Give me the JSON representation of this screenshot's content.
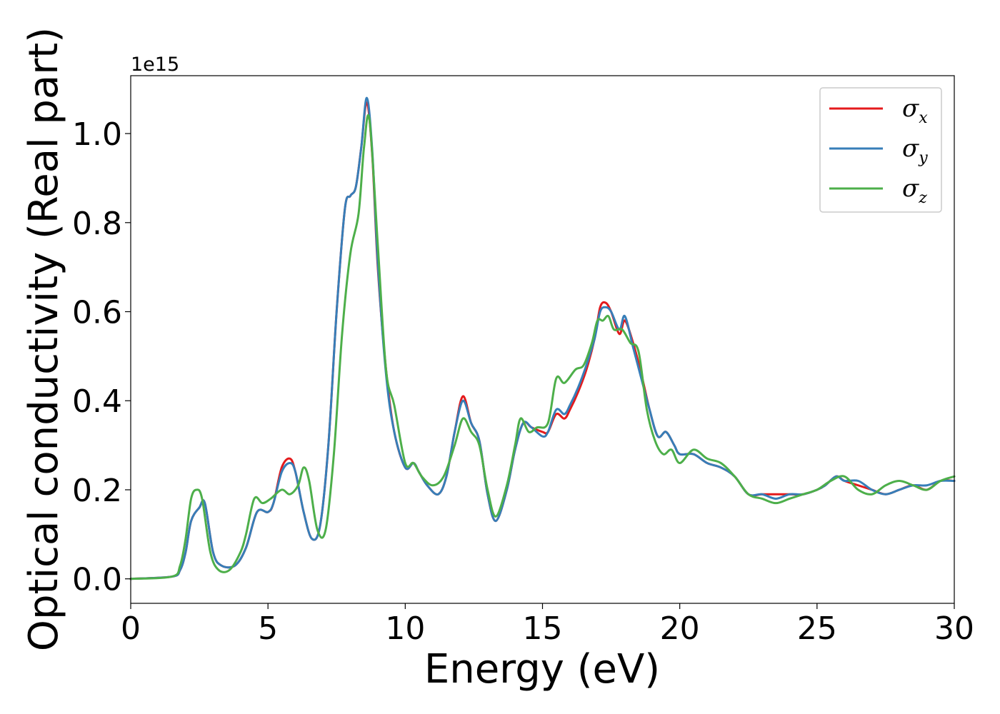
{
  "chart_data": {
    "type": "line",
    "title": "",
    "xlabel": "Energy (eV)",
    "ylabel": "Optical conductivity (Real part)",
    "y_offset_label": "1e15",
    "xlim": [
      0,
      30
    ],
    "ylim": [
      -0.055,
      1.13
    ],
    "xticks": [
      0,
      5,
      10,
      15,
      20,
      25,
      30
    ],
    "yticks": [
      0.0,
      0.2,
      0.4,
      0.6,
      0.8,
      1.0
    ],
    "xtick_labels": [
      "0",
      "5",
      "10",
      "15",
      "20",
      "25",
      "30"
    ],
    "ytick_labels": [
      "0.0",
      "0.2",
      "0.4",
      "0.6",
      "0.8",
      "1.0"
    ],
    "grid": false,
    "legend_position": "top-right",
    "series": [
      {
        "name": "σx",
        "label_base": "σ",
        "label_sub": "x",
        "color": "#e41a1c",
        "x": [
          0,
          1.5,
          1.8,
          2.0,
          2.2,
          2.5,
          2.7,
          3.0,
          3.3,
          3.8,
          4.2,
          4.6,
          5.0,
          5.2,
          5.5,
          5.8,
          6.0,
          6.3,
          6.6,
          6.9,
          7.2,
          7.5,
          7.8,
          8.0,
          8.2,
          8.4,
          8.6,
          8.8,
          9.0,
          9.3,
          9.6,
          10.0,
          10.3,
          10.5,
          10.8,
          11.2,
          11.5,
          11.8,
          12.1,
          12.4,
          12.7,
          13.0,
          13.3,
          13.7,
          14.0,
          14.3,
          14.6,
          15.0,
          15.2,
          15.5,
          15.8,
          16.0,
          16.3,
          16.6,
          16.9,
          17.1,
          17.3,
          17.5,
          17.8,
          18.0,
          18.3,
          18.6,
          18.9,
          19.2,
          19.5,
          19.8,
          20.0,
          20.5,
          21.0,
          21.5,
          22.0,
          22.5,
          23.0,
          23.5,
          24.0,
          24.5,
          25.0,
          25.3,
          25.7,
          26.0,
          26.5,
          27.0,
          27.5,
          28.0,
          28.5,
          29.0,
          29.5,
          30.0
        ],
        "y": [
          0.0,
          0.005,
          0.02,
          0.06,
          0.13,
          0.16,
          0.17,
          0.06,
          0.03,
          0.03,
          0.07,
          0.15,
          0.15,
          0.17,
          0.25,
          0.27,
          0.24,
          0.15,
          0.09,
          0.12,
          0.3,
          0.6,
          0.83,
          0.86,
          0.88,
          0.97,
          1.07,
          0.95,
          0.7,
          0.47,
          0.33,
          0.25,
          0.26,
          0.24,
          0.21,
          0.19,
          0.23,
          0.33,
          0.41,
          0.35,
          0.31,
          0.19,
          0.13,
          0.2,
          0.29,
          0.35,
          0.34,
          0.33,
          0.33,
          0.37,
          0.36,
          0.38,
          0.42,
          0.47,
          0.54,
          0.61,
          0.62,
          0.6,
          0.55,
          0.58,
          0.53,
          0.46,
          0.38,
          0.32,
          0.33,
          0.3,
          0.28,
          0.28,
          0.26,
          0.25,
          0.23,
          0.19,
          0.19,
          0.19,
          0.19,
          0.19,
          0.2,
          0.21,
          0.23,
          0.22,
          0.21,
          0.2,
          0.19,
          0.2,
          0.21,
          0.2,
          0.22,
          0.22
        ]
      },
      {
        "name": "σy",
        "label_base": "σ",
        "label_sub": "y",
        "color": "#377eb8",
        "x": [
          0,
          1.5,
          1.8,
          2.0,
          2.2,
          2.5,
          2.7,
          3.0,
          3.3,
          3.8,
          4.2,
          4.6,
          5.0,
          5.2,
          5.5,
          5.8,
          6.0,
          6.3,
          6.6,
          6.9,
          7.2,
          7.5,
          7.8,
          8.0,
          8.2,
          8.4,
          8.6,
          8.8,
          9.0,
          9.3,
          9.6,
          10.0,
          10.3,
          10.5,
          10.8,
          11.2,
          11.5,
          11.8,
          12.1,
          12.4,
          12.7,
          13.0,
          13.3,
          13.7,
          14.0,
          14.3,
          14.6,
          15.0,
          15.2,
          15.5,
          15.8,
          16.0,
          16.3,
          16.6,
          16.9,
          17.1,
          17.3,
          17.5,
          17.8,
          18.0,
          18.3,
          18.6,
          18.9,
          19.2,
          19.5,
          19.8,
          20.0,
          20.5,
          21.0,
          21.5,
          22.0,
          22.5,
          23.0,
          23.5,
          24.0,
          24.5,
          25.0,
          25.3,
          25.7,
          26.0,
          26.5,
          27.0,
          27.5,
          28.0,
          28.5,
          29.0,
          29.5,
          30.0
        ],
        "y": [
          0.0,
          0.005,
          0.02,
          0.06,
          0.13,
          0.16,
          0.17,
          0.06,
          0.03,
          0.03,
          0.07,
          0.15,
          0.15,
          0.17,
          0.24,
          0.26,
          0.24,
          0.15,
          0.09,
          0.12,
          0.3,
          0.6,
          0.83,
          0.86,
          0.88,
          0.97,
          1.08,
          0.96,
          0.71,
          0.46,
          0.33,
          0.25,
          0.26,
          0.24,
          0.21,
          0.19,
          0.23,
          0.33,
          0.4,
          0.35,
          0.31,
          0.19,
          0.13,
          0.2,
          0.29,
          0.35,
          0.34,
          0.32,
          0.33,
          0.38,
          0.37,
          0.39,
          0.43,
          0.48,
          0.54,
          0.6,
          0.61,
          0.6,
          0.56,
          0.59,
          0.52,
          0.45,
          0.38,
          0.32,
          0.33,
          0.3,
          0.28,
          0.28,
          0.26,
          0.25,
          0.23,
          0.19,
          0.19,
          0.18,
          0.19,
          0.19,
          0.2,
          0.21,
          0.23,
          0.22,
          0.22,
          0.2,
          0.19,
          0.2,
          0.21,
          0.21,
          0.22,
          0.22
        ]
      },
      {
        "name": "σz",
        "label_base": "σ",
        "label_sub": "z",
        "color": "#4daf4a",
        "x": [
          0,
          1.5,
          1.8,
          2.0,
          2.2,
          2.4,
          2.6,
          2.9,
          3.2,
          3.6,
          4.0,
          4.2,
          4.5,
          4.8,
          5.1,
          5.5,
          5.8,
          6.1,
          6.3,
          6.5,
          6.8,
          7.1,
          7.4,
          7.7,
          8.0,
          8.3,
          8.5,
          8.7,
          9.0,
          9.3,
          9.6,
          10.0,
          10.3,
          10.6,
          11.0,
          11.4,
          11.8,
          12.1,
          12.4,
          12.7,
          13.0,
          13.3,
          13.7,
          14.0,
          14.2,
          14.5,
          14.8,
          15.2,
          15.5,
          15.8,
          16.2,
          16.5,
          16.8,
          17.0,
          17.2,
          17.4,
          17.6,
          17.9,
          18.2,
          18.5,
          18.8,
          19.1,
          19.4,
          19.7,
          20.0,
          20.5,
          21.0,
          21.5,
          22.0,
          22.5,
          23.0,
          23.5,
          24.0,
          24.5,
          25.0,
          25.5,
          26.0,
          26.5,
          27.0,
          27.5,
          28.0,
          28.5,
          29.0,
          29.5,
          30.0
        ],
        "y": [
          0.0,
          0.005,
          0.03,
          0.09,
          0.18,
          0.2,
          0.18,
          0.06,
          0.02,
          0.02,
          0.06,
          0.1,
          0.18,
          0.17,
          0.18,
          0.2,
          0.19,
          0.21,
          0.25,
          0.22,
          0.11,
          0.11,
          0.28,
          0.55,
          0.73,
          0.82,
          0.97,
          1.03,
          0.75,
          0.47,
          0.39,
          0.26,
          0.26,
          0.23,
          0.21,
          0.23,
          0.3,
          0.36,
          0.33,
          0.3,
          0.2,
          0.14,
          0.21,
          0.3,
          0.36,
          0.33,
          0.34,
          0.35,
          0.45,
          0.44,
          0.47,
          0.48,
          0.53,
          0.58,
          0.58,
          0.59,
          0.56,
          0.56,
          0.53,
          0.51,
          0.38,
          0.31,
          0.28,
          0.29,
          0.26,
          0.29,
          0.27,
          0.26,
          0.23,
          0.19,
          0.18,
          0.17,
          0.18,
          0.19,
          0.2,
          0.22,
          0.23,
          0.2,
          0.19,
          0.21,
          0.22,
          0.21,
          0.2,
          0.22,
          0.23
        ]
      }
    ]
  }
}
